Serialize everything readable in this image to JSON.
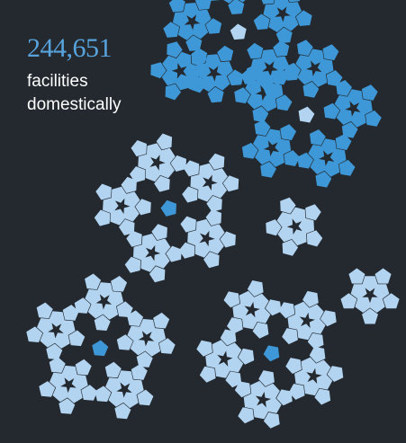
{
  "stat": {
    "number": "244,651",
    "label_line1": "facilities",
    "label_line2": "domestically"
  },
  "colors": {
    "background": "#23292e",
    "accent": "#3e97d6",
    "light": "#b3d4f1",
    "number_text": "#58a3dd",
    "label_text": "#ffffff"
  },
  "graphic": {
    "shape_icon": "pentagon-cluster-icon",
    "clusters": [
      {
        "color": "accent",
        "detail": "full"
      },
      {
        "color": "accent",
        "detail": "flower"
      },
      {
        "color": "accent",
        "detail": "full"
      },
      {
        "color": "light",
        "detail": "full"
      },
      {
        "color": "light",
        "detail": "flower"
      },
      {
        "color": "light",
        "detail": "full"
      },
      {
        "color": "light",
        "detail": "full"
      },
      {
        "color": "light",
        "detail": "flower"
      }
    ]
  }
}
